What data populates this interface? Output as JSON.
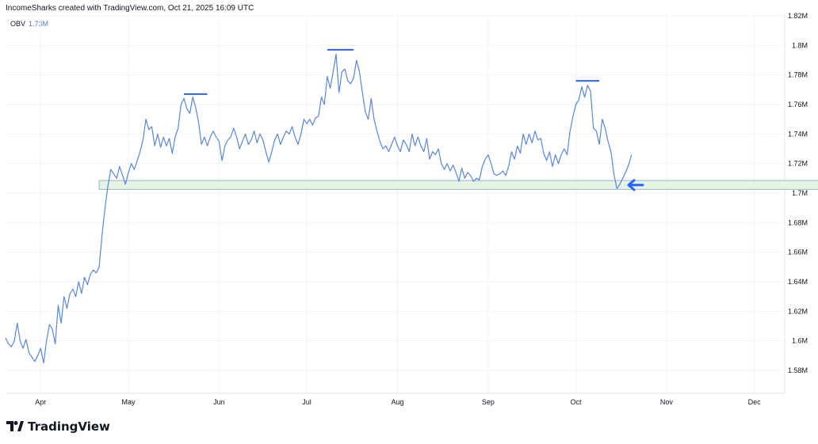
{
  "header": {
    "attribution": "IncomeSharks created with TradingView.com, Oct 21, 2025 16:09 UTC"
  },
  "indicator": {
    "name": "OBV",
    "value": "1.73M"
  },
  "brand": {
    "name": "TradingView",
    "logo_icon": "tradingview-logo-icon"
  },
  "colors": {
    "line": "#5b86d9",
    "zone_fill": "#e8f3e4",
    "zone_border": "#8cb8d9",
    "arrow": "#2962ff",
    "grid": "#f0f3fa"
  },
  "chart_data": {
    "type": "line",
    "title": "",
    "xlabel": "",
    "ylabel": "",
    "y_unit": "M",
    "ylim": [
      1.57,
      1.822
    ],
    "yticks": [
      {
        "value": 1.82,
        "label": "1.82M"
      },
      {
        "value": 1.8,
        "label": "1.8M"
      },
      {
        "value": 1.78,
        "label": "1.78M"
      },
      {
        "value": 1.76,
        "label": "1.76M"
      },
      {
        "value": 1.74,
        "label": "1.74M"
      },
      {
        "value": 1.72,
        "label": "1.72M"
      },
      {
        "value": 1.7,
        "label": "1.7M"
      },
      {
        "value": 1.68,
        "label": "1.68M"
      },
      {
        "value": 1.66,
        "label": "1.66M"
      },
      {
        "value": 1.64,
        "label": "1.64M"
      },
      {
        "value": 1.62,
        "label": "1.62M"
      },
      {
        "value": 1.6,
        "label": "1.6M"
      },
      {
        "value": 1.58,
        "label": "1.58M"
      }
    ],
    "xlim": [
      0,
      280
    ],
    "xticks": [
      {
        "day": 12,
        "label": "Apr"
      },
      {
        "day": 42,
        "label": "May"
      },
      {
        "day": 73,
        "label": "Jun"
      },
      {
        "day": 103,
        "label": "Jul"
      },
      {
        "day": 134,
        "label": "Aug"
      },
      {
        "day": 165,
        "label": "Sep"
      },
      {
        "day": 195,
        "label": "Oct"
      },
      {
        "day": 226,
        "label": "Nov"
      },
      {
        "day": 256,
        "label": "Dec"
      }
    ],
    "grid": true,
    "series": [
      {
        "points": [
          [
            0,
            1.602
          ],
          [
            1,
            1.598
          ],
          [
            2,
            1.596
          ],
          [
            3,
            1.6
          ],
          [
            4,
            1.612
          ],
          [
            5,
            1.6
          ],
          [
            6,
            1.595
          ],
          [
            7,
            1.601
          ],
          [
            8,
            1.592
          ],
          [
            9,
            1.589
          ],
          [
            10,
            1.586
          ],
          [
            11,
            1.59
          ],
          [
            12,
            1.595
          ],
          [
            13,
            1.585
          ],
          [
            14,
            1.6
          ],
          [
            15,
            1.611
          ],
          [
            16,
            1.608
          ],
          [
            17,
            1.598
          ],
          [
            18,
            1.624
          ],
          [
            19,
            1.612
          ],
          [
            20,
            1.63
          ],
          [
            21,
            1.622
          ],
          [
            22,
            1.632
          ],
          [
            23,
            1.635
          ],
          [
            24,
            1.63
          ],
          [
            25,
            1.64
          ],
          [
            26,
            1.632
          ],
          [
            27,
            1.643
          ],
          [
            28,
            1.638
          ],
          [
            29,
            1.645
          ],
          [
            30,
            1.648
          ],
          [
            31,
            1.646
          ],
          [
            32,
            1.65
          ],
          [
            33,
            1.672
          ],
          [
            34,
            1.69
          ],
          [
            35,
            1.705
          ],
          [
            36,
            1.716
          ],
          [
            37,
            1.713
          ],
          [
            38,
            1.71
          ],
          [
            39,
            1.718
          ],
          [
            40,
            1.712
          ],
          [
            41,
            1.706
          ],
          [
            42,
            1.714
          ],
          [
            43,
            1.72
          ],
          [
            44,
            1.716
          ],
          [
            45,
            1.722
          ],
          [
            46,
            1.728
          ],
          [
            47,
            1.736
          ],
          [
            48,
            1.75
          ],
          [
            49,
            1.743
          ],
          [
            50,
            1.745
          ],
          [
            51,
            1.732
          ],
          [
            52,
            1.74
          ],
          [
            53,
            1.731
          ],
          [
            54,
            1.738
          ],
          [
            55,
            1.732
          ],
          [
            56,
            1.737
          ],
          [
            57,
            1.727
          ],
          [
            58,
            1.738
          ],
          [
            59,
            1.744
          ],
          [
            60,
            1.76
          ],
          [
            61,
            1.764
          ],
          [
            62,
            1.757
          ],
          [
            63,
            1.754
          ],
          [
            64,
            1.765
          ],
          [
            65,
            1.758
          ],
          [
            66,
            1.748
          ],
          [
            67,
            1.733
          ],
          [
            68,
            1.738
          ],
          [
            69,
            1.732
          ],
          [
            70,
            1.738
          ],
          [
            71,
            1.742
          ],
          [
            72,
            1.738
          ],
          [
            73,
            1.735
          ],
          [
            74,
            1.722
          ],
          [
            75,
            1.732
          ],
          [
            76,
            1.736
          ],
          [
            77,
            1.738
          ],
          [
            78,
            1.744
          ],
          [
            79,
            1.738
          ],
          [
            80,
            1.73
          ],
          [
            81,
            1.735
          ],
          [
            82,
            1.74
          ],
          [
            83,
            1.733
          ],
          [
            84,
            1.736
          ],
          [
            85,
            1.742
          ],
          [
            86,
            1.734
          ],
          [
            87,
            1.74
          ],
          [
            88,
            1.736
          ],
          [
            89,
            1.728
          ],
          [
            90,
            1.721
          ],
          [
            91,
            1.728
          ],
          [
            92,
            1.736
          ],
          [
            93,
            1.74
          ],
          [
            94,
            1.733
          ],
          [
            95,
            1.738
          ],
          [
            96,
            1.742
          ],
          [
            97,
            1.74
          ],
          [
            98,
            1.745
          ],
          [
            99,
            1.738
          ],
          [
            100,
            1.733
          ],
          [
            101,
            1.74
          ],
          [
            102,
            1.75
          ],
          [
            103,
            1.747
          ],
          [
            104,
            1.75
          ],
          [
            105,
            1.746
          ],
          [
            106,
            1.751
          ],
          [
            107,
            1.752
          ],
          [
            108,
            1.765
          ],
          [
            109,
            1.76
          ],
          [
            110,
            1.779
          ],
          [
            111,
            1.771
          ],
          [
            112,
            1.782
          ],
          [
            113,
            1.794
          ],
          [
            114,
            1.768
          ],
          [
            115,
            1.782
          ],
          [
            116,
            1.784
          ],
          [
            117,
            1.776
          ],
          [
            118,
            1.774
          ],
          [
            119,
            1.778
          ],
          [
            120,
            1.79
          ],
          [
            121,
            1.782
          ],
          [
            122,
            1.768
          ],
          [
            123,
            1.755
          ],
          [
            124,
            1.75
          ],
          [
            125,
            1.764
          ],
          [
            126,
            1.75
          ],
          [
            127,
            1.742
          ],
          [
            128,
            1.735
          ],
          [
            129,
            1.73
          ],
          [
            130,
            1.732
          ],
          [
            131,
            1.728
          ],
          [
            132,
            1.733
          ],
          [
            133,
            1.738
          ],
          [
            134,
            1.732
          ],
          [
            135,
            1.728
          ],
          [
            136,
            1.736
          ],
          [
            137,
            1.733
          ],
          [
            138,
            1.728
          ],
          [
            139,
            1.74
          ],
          [
            140,
            1.732
          ],
          [
            141,
            1.738
          ],
          [
            142,
            1.732
          ],
          [
            143,
            1.728
          ],
          [
            144,
            1.737
          ],
          [
            145,
            1.723
          ],
          [
            146,
            1.728
          ],
          [
            147,
            1.726
          ],
          [
            148,
            1.73
          ],
          [
            149,
            1.72
          ],
          [
            150,
            1.716
          ],
          [
            151,
            1.72
          ],
          [
            152,
            1.715
          ],
          [
            153,
            1.719
          ],
          [
            154,
            1.714
          ],
          [
            155,
            1.708
          ],
          [
            156,
            1.717
          ],
          [
            157,
            1.71
          ],
          [
            158,
            1.714
          ],
          [
            159,
            1.712
          ],
          [
            160,
            1.708
          ],
          [
            161,
            1.71
          ],
          [
            162,
            1.709
          ],
          [
            163,
            1.718
          ],
          [
            164,
            1.723
          ],
          [
            165,
            1.726
          ],
          [
            166,
            1.72
          ],
          [
            167,
            1.713
          ],
          [
            168,
            1.712
          ],
          [
            169,
            1.713
          ],
          [
            170,
            1.715
          ],
          [
            171,
            1.712
          ],
          [
            172,
            1.718
          ],
          [
            173,
            1.728
          ],
          [
            174,
            1.723
          ],
          [
            175,
            1.732
          ],
          [
            176,
            1.727
          ],
          [
            177,
            1.74
          ],
          [
            178,
            1.733
          ],
          [
            179,
            1.74
          ],
          [
            180,
            1.734
          ],
          [
            181,
            1.742
          ],
          [
            182,
            1.736
          ],
          [
            183,
            1.737
          ],
          [
            184,
            1.727
          ],
          [
            185,
            1.722
          ],
          [
            186,
            1.728
          ],
          [
            187,
            1.718
          ],
          [
            188,
            1.726
          ],
          [
            189,
            1.72
          ],
          [
            190,
            1.726
          ],
          [
            191,
            1.73
          ],
          [
            192,
            1.726
          ],
          [
            193,
            1.742
          ],
          [
            194,
            1.752
          ],
          [
            195,
            1.76
          ],
          [
            196,
            1.763
          ],
          [
            197,
            1.772
          ],
          [
            198,
            1.765
          ],
          [
            199,
            1.773
          ],
          [
            200,
            1.769
          ],
          [
            201,
            1.744
          ],
          [
            202,
            1.742
          ],
          [
            203,
            1.733
          ],
          [
            204,
            1.75
          ],
          [
            205,
            1.744
          ],
          [
            206,
            1.735
          ],
          [
            207,
            1.728
          ],
          [
            208,
            1.713
          ],
          [
            209,
            1.703
          ],
          [
            210,
            1.706
          ],
          [
            211,
            1.71
          ],
          [
            212,
            1.714
          ],
          [
            213,
            1.719
          ],
          [
            214,
            1.726
          ]
        ]
      }
    ],
    "annotations": {
      "peak_markers": [
        {
          "x1": 61,
          "x2": 69,
          "y": 1.767
        },
        {
          "x1": 110,
          "x2": 119,
          "y": 1.797
        },
        {
          "x1": 195,
          "x2": 203,
          "y": 1.776
        }
      ],
      "support_zone": {
        "x1": 32,
        "x2": 279,
        "y_low": 1.7025,
        "y_high": 1.7085
      },
      "arrow": {
        "x": 213,
        "y": 1.7055,
        "direction": "left"
      }
    }
  }
}
